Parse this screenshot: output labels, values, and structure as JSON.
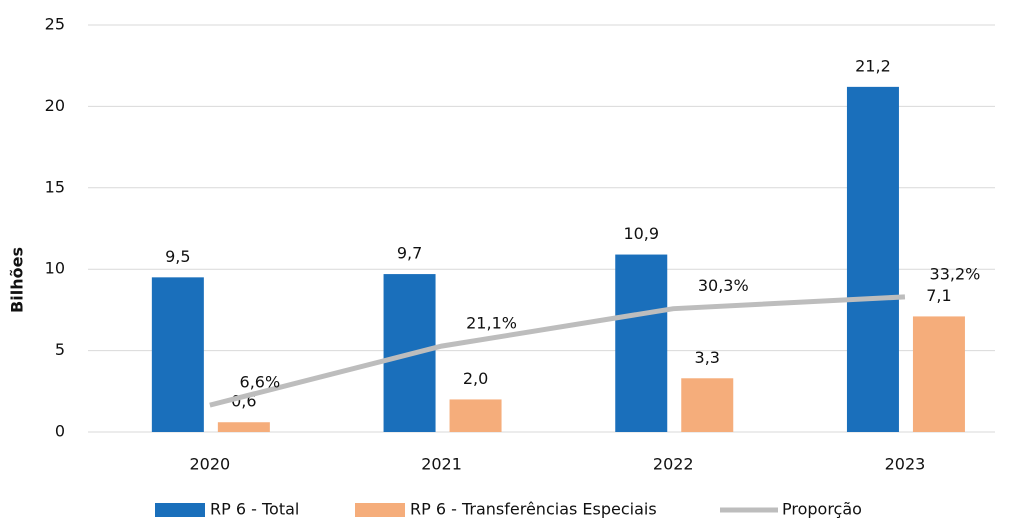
{
  "chart_data": {
    "type": "bar",
    "categories": [
      "2020",
      "2021",
      "2022",
      "2023"
    ],
    "y_label": "Bilhões",
    "ylim": [
      0,
      25
    ],
    "yticks": [
      0,
      5,
      10,
      15,
      20,
      25
    ],
    "grid": true,
    "y2lim": [
      0,
      100
    ],
    "legend": "bottom",
    "series": [
      {
        "name": "RP 6 - Total",
        "type": "bar",
        "color": "#1a6fbb",
        "values": [
          9.5,
          9.7,
          10.9,
          21.2
        ],
        "value_labels": [
          "9,5",
          "9,7",
          "10,9",
          "21,2"
        ]
      },
      {
        "name": "RP 6 - Transferências Especiais",
        "type": "bar",
        "color": "#f5ad7b",
        "values": [
          0.6,
          2.0,
          3.3,
          7.1
        ],
        "value_labels": [
          "0,6",
          "2,0",
          "3,3",
          "7,1"
        ]
      },
      {
        "name": "Proporção",
        "type": "line",
        "axis": "y2",
        "color": "#bdbdbd",
        "values": [
          6.6,
          21.1,
          30.3,
          33.2
        ],
        "value_labels": [
          "6,6%",
          "21,1%",
          "30,3%",
          "33,2%"
        ]
      }
    ]
  }
}
